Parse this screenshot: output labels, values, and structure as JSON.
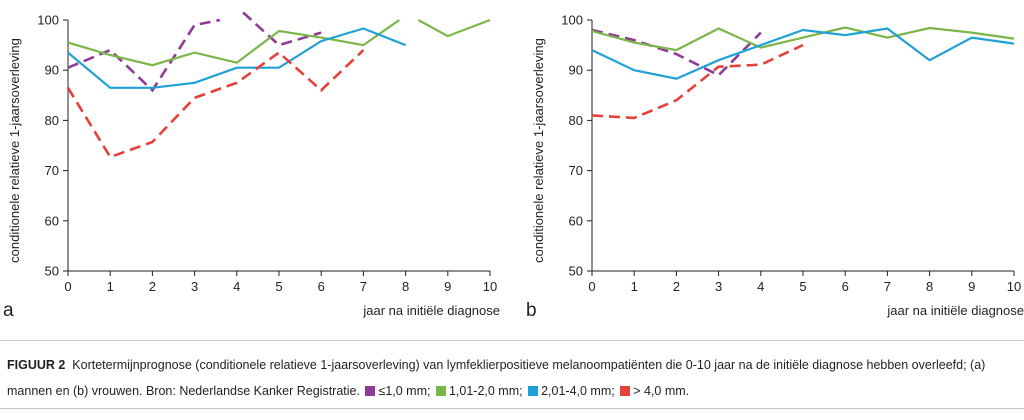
{
  "chart_data": [
    {
      "panel": "a",
      "type": "line",
      "xlabel": "jaar na initiële diagnose",
      "ylabel": "conditionele relatieve 1-jaarsoverleving",
      "xlim": [
        0,
        10
      ],
      "ylim": [
        50,
        100
      ],
      "xticks": [
        "0",
        "1",
        "2",
        "3",
        "4",
        "5",
        "6",
        "7",
        "8",
        "9",
        "10"
      ],
      "yticks": [
        "50",
        "60",
        "70",
        "80",
        "90",
        "100"
      ],
      "series": [
        {
          "name": "≤1,0 mm",
          "color": "#8e3b97",
          "dash": true,
          "segments": [
            [
              [
                0,
                90.5
              ],
              [
                1,
                94
              ],
              [
                2,
                86
              ],
              [
                3,
                99
              ],
              [
                3.6,
                100
              ]
            ],
            [
              [
                4.15,
                101.5
              ],
              [
                5,
                95
              ],
              [
                6,
                97.5
              ]
            ]
          ]
        },
        {
          "name": "1,01-2,0 mm",
          "color": "#7ab648",
          "dash": false,
          "segments": [
            [
              [
                0,
                95.5
              ],
              [
                1,
                93
              ],
              [
                2,
                91
              ],
              [
                3,
                93.5
              ],
              [
                4,
                91.5
              ],
              [
                5,
                97.8
              ],
              [
                6,
                96.5
              ],
              [
                7,
                95
              ],
              [
                7.85,
                100
              ]
            ],
            [
              [
                8.3,
                100
              ],
              [
                9,
                96.8
              ],
              [
                10,
                100
              ]
            ]
          ]
        },
        {
          "name": "2,01-4,0 mm",
          "color": "#1fa1d8",
          "dash": false,
          "segments": [
            [
              [
                0,
                93.5
              ],
              [
                1,
                86.5
              ],
              [
                2,
                86.5
              ],
              [
                3,
                87.5
              ],
              [
                4,
                90.5
              ],
              [
                5,
                90.5
              ],
              [
                6,
                95.8
              ],
              [
                7,
                98.3
              ],
              [
                8,
                95
              ]
            ]
          ]
        },
        {
          "name": "> 4,0 mm",
          "color": "#e5413b",
          "dash": true,
          "segments": [
            [
              [
                0,
                86.5
              ],
              [
                1,
                72.7
              ],
              [
                2,
                75.7
              ],
              [
                3,
                84.5
              ],
              [
                4,
                87.5
              ],
              [
                5,
                93.5
              ],
              [
                6,
                86
              ],
              [
                7,
                94
              ]
            ]
          ]
        }
      ]
    },
    {
      "panel": "b",
      "type": "line",
      "xlabel": "jaar na initiële diagnose",
      "ylabel": "conditionele relatieve 1-jaarsoverleving",
      "xlim": [
        0,
        10
      ],
      "ylim": [
        50,
        100
      ],
      "xticks": [
        "0",
        "1",
        "2",
        "3",
        "4",
        "5",
        "6",
        "7",
        "8",
        "9",
        "10"
      ],
      "yticks": [
        "50",
        "60",
        "70",
        "80",
        "90",
        "100"
      ],
      "series": [
        {
          "name": "≤1,0 mm",
          "color": "#8e3b97",
          "dash": true,
          "segments": [
            [
              [
                0,
                98
              ],
              [
                1,
                96
              ],
              [
                2,
                93.2
              ],
              [
                3,
                89
              ],
              [
                4,
                97.5
              ]
            ]
          ]
        },
        {
          "name": "1,01-2,0 mm",
          "color": "#7ab648",
          "dash": false,
          "segments": [
            [
              [
                0,
                97.8
              ],
              [
                1,
                95.5
              ],
              [
                2,
                94
              ],
              [
                3,
                98.3
              ],
              [
                4,
                94.5
              ],
              [
                5,
                96.5
              ],
              [
                6,
                98.5
              ],
              [
                7,
                96.5
              ],
              [
                8,
                98.4
              ],
              [
                9,
                97.5
              ],
              [
                10,
                96.3
              ]
            ]
          ]
        },
        {
          "name": "2,01-4,0 mm",
          "color": "#1fa1d8",
          "dash": false,
          "segments": [
            [
              [
                0,
                94
              ],
              [
                1,
                90
              ],
              [
                2,
                88.3
              ],
              [
                3,
                92
              ],
              [
                4,
                95
              ],
              [
                5,
                98
              ],
              [
                6,
                97
              ],
              [
                7,
                98.3
              ],
              [
                8,
                92
              ],
              [
                9,
                96.5
              ],
              [
                10,
                95.3
              ]
            ]
          ]
        },
        {
          "name": "> 4,0 mm",
          "color": "#e5413b",
          "dash": true,
          "segments": [
            [
              [
                0,
                81
              ],
              [
                1,
                80.5
              ],
              [
                2,
                84
              ],
              [
                3,
                90.7
              ],
              [
                4,
                91.1
              ],
              [
                5,
                95
              ]
            ]
          ]
        }
      ]
    }
  ],
  "caption": {
    "label": "FIGUUR 2",
    "text": "Kortetermijnprognose (conditionele relatieve 1-jaarsoverleving) van lymfeklierpositieve melanoompatiënten die 0-10 jaar na de initiële diagnose hebben overleefd; (a) mannen en (b) vrouwen. Bron: Nederlandse Kanker Registratie.",
    "legend": [
      {
        "label": "≤1,0 mm;",
        "color": "#8e3b97"
      },
      {
        "label": "1,01-2,0 mm;",
        "color": "#7ab648"
      },
      {
        "label": "2,01-4,0 mm;",
        "color": "#1fa1d8"
      },
      {
        "label": "> 4,0 mm.",
        "color": "#e5413b"
      }
    ]
  }
}
